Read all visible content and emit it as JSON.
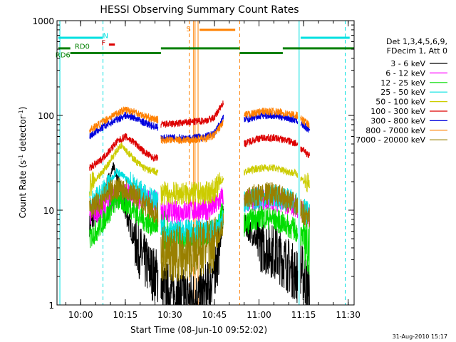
{
  "chart_data": {
    "type": "line",
    "title": "HESSI Observing Summary Count Rates",
    "xlabel": "Start Time (08-Jun-10 09:52:02)",
    "ylabel_parts": [
      "Count Rate (s",
      "-1",
      " detector",
      "-1",
      ")"
    ],
    "timestamp": "31-Aug-2010 15:17",
    "y_scale": "log",
    "ylim": [
      1,
      1000
    ],
    "y_ticks": [
      {
        "value": 1,
        "label": "1"
      },
      {
        "value": 10,
        "label": "10"
      },
      {
        "value": 100,
        "label": "100"
      },
      {
        "value": 1000,
        "label": "1000"
      }
    ],
    "xlim": [
      "09:52:02",
      "11:32:00"
    ],
    "x_ticks": [
      "10:00",
      "10:15",
      "10:30",
      "10:45",
      "11:00",
      "11:15",
      "11:30"
    ],
    "legend": {
      "placement": "right",
      "header": [
        "Det 1,3,4,5,6,9,",
        "FDecim 1, Att 0"
      ],
      "entries": [
        {
          "name": "3 - 6 keV",
          "color": "#000000"
        },
        {
          "name": "6 - 12 keV",
          "color": "#ff00ff"
        },
        {
          "name": "12 - 25 keV",
          "color": "#00dd00"
        },
        {
          "name": "25 - 50 keV",
          "color": "#00e0e0"
        },
        {
          "name": "50 - 100 keV",
          "color": "#cccc00"
        },
        {
          "name": "100 - 300 keV",
          "color": "#dd0000"
        },
        {
          "name": "300 - 800 keV",
          "color": "#0000dd"
        },
        {
          "name": "800 - 7000 keV",
          "color": "#ff8000"
        },
        {
          "name": "7000 - 20000 keV",
          "color": "#998000"
        }
      ]
    },
    "segments": [
      {
        "start": "10:03:00",
        "end": "10:26:00"
      },
      {
        "start": "10:27:00",
        "end": "10:48:00"
      },
      {
        "start": "10:55:00",
        "end": "11:13:00"
      },
      {
        "start": "11:14:00",
        "end": "11:17:00"
      }
    ],
    "series": [
      {
        "color": "#000000",
        "points": [
          [
            "10:03",
            7
          ],
          [
            "10:06",
            10
          ],
          [
            "10:09",
            17
          ],
          [
            "10:11",
            30
          ],
          [
            "10:13",
            18
          ],
          [
            "10:15",
            10
          ],
          [
            "10:18",
            5
          ],
          [
            "10:21",
            3
          ],
          [
            "10:24",
            2.2
          ],
          [
            "10:26",
            2
          ],
          [
            "10:28",
            1.5
          ],
          [
            "10:32",
            1.3
          ],
          [
            "10:36",
            1.2
          ],
          [
            "10:40",
            1.2
          ],
          [
            "10:43",
            1.5
          ],
          [
            "10:46",
            3
          ],
          [
            "10:48",
            9
          ],
          [
            "10:55",
            7
          ],
          [
            "10:57",
            6
          ],
          [
            "11:00",
            4.5
          ],
          [
            "11:03",
            4
          ],
          [
            "11:06",
            3.5
          ],
          [
            "11:09",
            2.8
          ],
          [
            "11:13",
            2
          ],
          [
            "11:14",
            2.5
          ],
          [
            "11:17",
            1.3
          ]
        ]
      },
      {
        "color": "#ff00ff",
        "points": [
          [
            "10:03",
            9
          ],
          [
            "10:06",
            10
          ],
          [
            "10:09",
            12
          ],
          [
            "10:12",
            14
          ],
          [
            "10:15",
            15
          ],
          [
            "10:18",
            14
          ],
          [
            "10:21",
            13
          ],
          [
            "10:24",
            12
          ],
          [
            "10:26",
            12
          ],
          [
            "10:27",
            9.5
          ],
          [
            "10:32",
            9.5
          ],
          [
            "10:37",
            10
          ],
          [
            "10:42",
            10
          ],
          [
            "10:45",
            11
          ],
          [
            "10:48",
            14
          ],
          [
            "10:55",
            12
          ],
          [
            "10:58",
            13
          ],
          [
            "11:01",
            13
          ],
          [
            "11:05",
            13
          ],
          [
            "11:09",
            12
          ],
          [
            "11:13",
            11
          ],
          [
            "11:14",
            10
          ],
          [
            "11:17",
            8
          ]
        ]
      },
      {
        "color": "#00dd00",
        "points": [
          [
            "10:03",
            5
          ],
          [
            "10:06",
            6.5
          ],
          [
            "10:09",
            9
          ],
          [
            "10:12",
            13
          ],
          [
            "10:15",
            12
          ],
          [
            "10:18",
            10
          ],
          [
            "10:21",
            8
          ],
          [
            "10:24",
            7
          ],
          [
            "10:26",
            7
          ],
          [
            "10:27",
            5
          ],
          [
            "10:32",
            5
          ],
          [
            "10:37",
            5
          ],
          [
            "10:42",
            5.5
          ],
          [
            "10:45",
            6
          ],
          [
            "10:48",
            10
          ],
          [
            "10:55",
            7
          ],
          [
            "10:58",
            8
          ],
          [
            "11:01",
            8.5
          ],
          [
            "11:05",
            8
          ],
          [
            "11:09",
            7
          ],
          [
            "11:13",
            6
          ],
          [
            "11:14",
            5.5
          ],
          [
            "11:17",
            4
          ]
        ]
      },
      {
        "color": "#00e0e0",
        "points": [
          [
            "10:03",
            12
          ],
          [
            "10:06",
            14
          ],
          [
            "10:09",
            18
          ],
          [
            "10:12",
            26
          ],
          [
            "10:15",
            22
          ],
          [
            "10:18",
            18
          ],
          [
            "10:21",
            15
          ],
          [
            "10:24",
            13
          ],
          [
            "10:26",
            12
          ],
          [
            "10:27",
            6
          ],
          [
            "10:32",
            6
          ],
          [
            "10:37",
            6
          ],
          [
            "10:42",
            6
          ],
          [
            "10:45",
            6
          ],
          [
            "10:48",
            8
          ],
          [
            "10:55",
            12
          ],
          [
            "10:58",
            13
          ],
          [
            "11:01",
            14
          ],
          [
            "11:05",
            14
          ],
          [
            "11:09",
            13
          ],
          [
            "11:13",
            12
          ],
          [
            "11:14",
            11
          ],
          [
            "11:17",
            9
          ]
        ]
      },
      {
        "color": "#cccc00",
        "points": [
          [
            "10:03",
            18
          ],
          [
            "10:06",
            22
          ],
          [
            "10:09",
            30
          ],
          [
            "10:12",
            42
          ],
          [
            "10:14",
            50
          ],
          [
            "10:16",
            40
          ],
          [
            "10:19",
            32
          ],
          [
            "10:22",
            27
          ],
          [
            "10:26",
            25
          ],
          [
            "10:27",
            15
          ],
          [
            "10:32",
            15
          ],
          [
            "10:37",
            15
          ],
          [
            "10:42",
            15
          ],
          [
            "10:45",
            16
          ],
          [
            "10:48",
            22
          ],
          [
            "10:55",
            25
          ],
          [
            "10:58",
            27
          ],
          [
            "11:01",
            28
          ],
          [
            "11:05",
            28
          ],
          [
            "11:09",
            26
          ],
          [
            "11:13",
            24
          ],
          [
            "11:14",
            22
          ],
          [
            "11:17",
            18
          ]
        ]
      },
      {
        "color": "#dd0000",
        "points": [
          [
            "10:03",
            28
          ],
          [
            "10:06",
            32
          ],
          [
            "10:09",
            40
          ],
          [
            "10:12",
            52
          ],
          [
            "10:15",
            60
          ],
          [
            "10:18",
            52
          ],
          [
            "10:21",
            42
          ],
          [
            "10:24",
            36
          ],
          [
            "10:26",
            35
          ],
          [
            "10:27",
            80
          ],
          [
            "10:32",
            82
          ],
          [
            "10:37",
            85
          ],
          [
            "10:42",
            88
          ],
          [
            "10:45",
            95
          ],
          [
            "10:48",
            140
          ],
          [
            "10:55",
            50
          ],
          [
            "10:58",
            55
          ],
          [
            "11:01",
            58
          ],
          [
            "11:05",
            58
          ],
          [
            "11:09",
            55
          ],
          [
            "11:13",
            50
          ],
          [
            "11:14",
            45
          ],
          [
            "11:17",
            38
          ]
        ]
      },
      {
        "color": "#0000dd",
        "points": [
          [
            "10:03",
            60
          ],
          [
            "10:06",
            70
          ],
          [
            "10:09",
            80
          ],
          [
            "10:12",
            90
          ],
          [
            "10:15",
            100
          ],
          [
            "10:18",
            95
          ],
          [
            "10:21",
            85
          ],
          [
            "10:24",
            78
          ],
          [
            "10:26",
            75
          ],
          [
            "10:27",
            58
          ],
          [
            "10:32",
            58
          ],
          [
            "10:37",
            58
          ],
          [
            "10:42",
            60
          ],
          [
            "10:45",
            65
          ],
          [
            "10:48",
            95
          ],
          [
            "10:55",
            90
          ],
          [
            "10:58",
            95
          ],
          [
            "11:01",
            100
          ],
          [
            "11:05",
            100
          ],
          [
            "11:09",
            95
          ],
          [
            "11:13",
            88
          ],
          [
            "11:14",
            82
          ],
          [
            "11:17",
            70
          ]
        ]
      },
      {
        "color": "#ff8000",
        "points": [
          [
            "10:03",
            70
          ],
          [
            "10:06",
            80
          ],
          [
            "10:09",
            92
          ],
          [
            "10:12",
            105
          ],
          [
            "10:15",
            115
          ],
          [
            "10:18",
            110
          ],
          [
            "10:21",
            100
          ],
          [
            "10:24",
            92
          ],
          [
            "10:26",
            90
          ],
          [
            "10:27",
            55
          ],
          [
            "10:32",
            55
          ],
          [
            "10:37",
            55
          ],
          [
            "10:42",
            57
          ],
          [
            "10:45",
            62
          ],
          [
            "10:48",
            85
          ],
          [
            "10:55",
            100
          ],
          [
            "10:58",
            105
          ],
          [
            "11:01",
            110
          ],
          [
            "11:05",
            110
          ],
          [
            "11:09",
            105
          ],
          [
            "11:13",
            100
          ],
          [
            "11:14",
            92
          ],
          [
            "11:17",
            80
          ]
        ]
      },
      {
        "color": "#998000",
        "points": [
          [
            "10:03",
            10
          ],
          [
            "10:06",
            12
          ],
          [
            "10:09",
            15
          ],
          [
            "10:12",
            17
          ],
          [
            "10:15",
            17
          ],
          [
            "10:18",
            15
          ],
          [
            "10:21",
            12
          ],
          [
            "10:24",
            10
          ],
          [
            "10:26",
            9
          ],
          [
            "10:27",
            3.5
          ],
          [
            "10:32",
            3.5
          ],
          [
            "10:37",
            3.6
          ],
          [
            "10:42",
            4
          ],
          [
            "10:45",
            4.5
          ],
          [
            "10:48",
            7
          ],
          [
            "10:55",
            12
          ],
          [
            "10:58",
            14
          ],
          [
            "11:01",
            15
          ],
          [
            "11:05",
            15
          ],
          [
            "11:09",
            13
          ],
          [
            "11:13",
            11
          ],
          [
            "11:14",
            10
          ],
          [
            "11:17",
            8
          ]
        ]
      }
    ],
    "flag_bars": [
      {
        "label": "",
        "color": "#00e0e0",
        "y": 660,
        "start": "09:52:30",
        "end": "10:07:30"
      },
      {
        "label": "",
        "color": "#00e0e0",
        "y": 660,
        "start": "11:14:00",
        "end": "11:30:30"
      },
      {
        "label": "",
        "color": "#008000",
        "y": 510,
        "start": "09:52:30",
        "end": "09:56:30"
      },
      {
        "label": "",
        "color": "#008000",
        "y": 455,
        "start": "09:56:30",
        "end": "10:27:00"
      },
      {
        "label": "",
        "color": "#008000",
        "y": 510,
        "start": "10:27:00",
        "end": "10:53:30"
      },
      {
        "label": "",
        "color": "#008000",
        "y": 455,
        "start": "10:53:30",
        "end": "11:08:00"
      },
      {
        "label": "",
        "color": "#008000",
        "y": 510,
        "start": "11:08:00",
        "end": "11:32:00"
      },
      {
        "label": "",
        "color": "#ff8000",
        "y": 800,
        "start": "10:40:00",
        "end": "10:52:00"
      },
      {
        "label": "",
        "color": "#dd0000",
        "y": 560,
        "start": "10:09:30",
        "end": "10:11:30"
      }
    ],
    "flag_labels": [
      {
        "text": "N",
        "color": "#00e0e0",
        "x": "10:07:30",
        "y": 700
      },
      {
        "text": "F",
        "color": "#dd0000",
        "x": "10:07:00",
        "y": 590
      },
      {
        "text": "S",
        "color": "#ff8000",
        "x": "10:35:30",
        "y": 830
      },
      {
        "text": "RD0",
        "color": "#008000",
        "x": "09:58:00",
        "y": 540
      },
      {
        "text": "RD6",
        "color": "#008000",
        "x": "09:51:30",
        "y": 440
      }
    ],
    "vertical_lines": [
      {
        "time": "09:53:00",
        "color": "#00e0e0",
        "style": "solid"
      },
      {
        "time": "10:07:30",
        "color": "#00e0e0",
        "style": "dashed"
      },
      {
        "time": "11:13:30",
        "color": "#00e0e0",
        "style": "solid"
      },
      {
        "time": "11:29:00",
        "color": "#00e0e0",
        "style": "dashed"
      },
      {
        "time": "10:36:30",
        "color": "#ff8000",
        "style": "dashed"
      },
      {
        "time": "10:38:30",
        "color": "#ff8000",
        "style": "solid"
      },
      {
        "time": "10:39:30",
        "color": "#ff8000",
        "style": "solid"
      },
      {
        "time": "10:53:30",
        "color": "#ff8000",
        "style": "dashed"
      },
      {
        "time": "10:38:00",
        "color": "#ff8000",
        "style": "solid"
      }
    ]
  }
}
